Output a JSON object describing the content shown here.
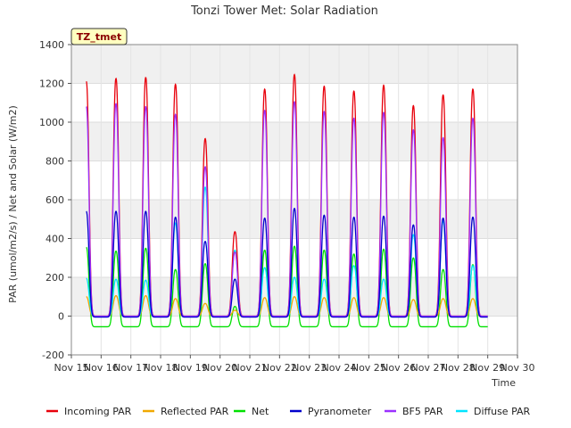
{
  "chart_data": {
    "type": "line",
    "title": "Tonzi Tower Met: Solar Radiation",
    "xlabel": "Time",
    "ylabel": "PAR (umol/m2/s) / Net and Solar (W/m2)",
    "site_label": "TZ_tmet",
    "ylim": [
      -200,
      1400
    ],
    "yticks": [
      -200,
      0,
      200,
      400,
      600,
      800,
      1000,
      1200,
      1400
    ],
    "xlim": [
      15,
      30
    ],
    "xticks": [
      15,
      16,
      17,
      18,
      19,
      20,
      21,
      22,
      23,
      24,
      25,
      26,
      27,
      28,
      29,
      30
    ],
    "xtick_labels": [
      "Nov 15",
      "Nov 16",
      "Nov 17",
      "Nov 18",
      "Nov 19",
      "Nov 20",
      "Nov 21",
      "Nov 22",
      "Nov 23",
      "Nov 24",
      "Nov 25",
      "Nov 26",
      "Nov 27",
      "Nov 28",
      "Nov 29",
      "Nov 30"
    ],
    "grid": true,
    "legend_position": "bottom",
    "days": [
      15.5,
      16.5,
      17.5,
      18.5,
      19.5,
      20.5,
      21.5,
      22.5,
      23.5,
      24.5,
      25.5,
      26.5,
      27.5,
      28.5
    ],
    "series": [
      {
        "name": "Incoming PAR",
        "color": "#e8000b",
        "night": 0,
        "peaks": [
          1210,
          1225,
          1230,
          1195,
          915,
          435,
          1170,
          1245,
          1185,
          1160,
          1190,
          1085,
          1140,
          1170
        ]
      },
      {
        "name": "Reflected PAR",
        "color": "#f0a800",
        "night": 0,
        "peaks": [
          100,
          105,
          105,
          90,
          65,
          30,
          95,
          100,
          95,
          95,
          95,
          85,
          90,
          90
        ]
      },
      {
        "name": "Net",
        "color": "#00e000",
        "night": -55,
        "peaks": [
          355,
          335,
          350,
          240,
          270,
          50,
          340,
          360,
          340,
          320,
          345,
          300,
          240,
          265
        ]
      },
      {
        "name": "Pyranometer",
        "color": "#0000cc",
        "night": -5,
        "peaks": [
          540,
          540,
          540,
          510,
          385,
          190,
          505,
          555,
          520,
          510,
          515,
          470,
          505,
          510
        ]
      },
      {
        "name": "BF5 PAR",
        "color": "#9b30ff",
        "night": 0,
        "peaks": [
          1080,
          1095,
          1080,
          1040,
          770,
          330,
          1060,
          1105,
          1055,
          1020,
          1050,
          960,
          920,
          1020
        ]
      },
      {
        "name": "Diffuse PAR",
        "color": "#00e5ff",
        "night": 0,
        "peaks": [
          195,
          190,
          185,
          480,
          665,
          340,
          250,
          200,
          190,
          260,
          190,
          420,
          490,
          260
        ]
      }
    ]
  }
}
